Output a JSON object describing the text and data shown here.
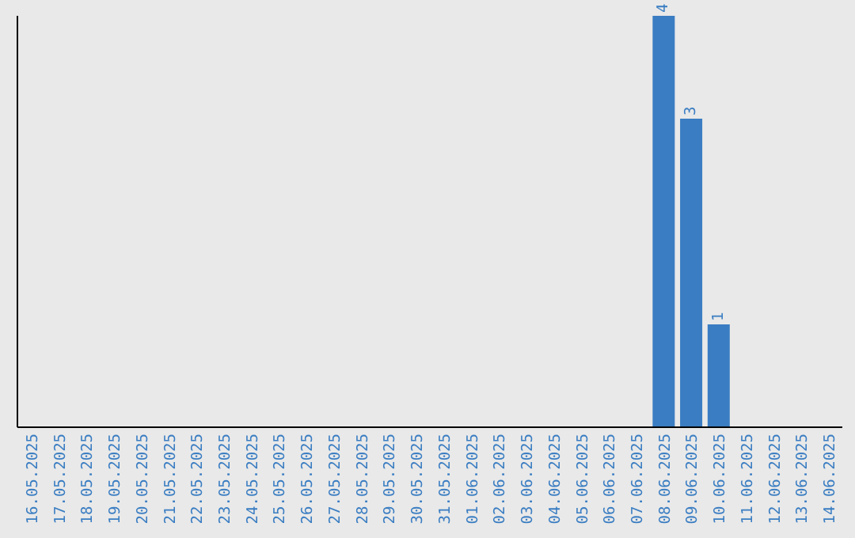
{
  "chart_data": {
    "type": "bar",
    "categories": [
      "16.05.2025",
      "17.05.2025",
      "18.05.2025",
      "19.05.2025",
      "20.05.2025",
      "21.05.2025",
      "22.05.2025",
      "23.05.2025",
      "24.05.2025",
      "25.05.2025",
      "26.05.2025",
      "27.05.2025",
      "28.05.2025",
      "29.05.2025",
      "30.05.2025",
      "31.05.2025",
      "01.06.2025",
      "02.06.2025",
      "03.06.2025",
      "04.06.2025",
      "05.06.2025",
      "06.06.2025",
      "07.06.2025",
      "08.06.2025",
      "09.06.2025",
      "10.06.2025",
      "11.06.2025",
      "12.06.2025",
      "13.06.2025",
      "14.06.2025"
    ],
    "values": [
      null,
      null,
      null,
      null,
      null,
      null,
      null,
      null,
      null,
      null,
      null,
      null,
      null,
      null,
      null,
      null,
      null,
      null,
      null,
      null,
      null,
      null,
      null,
      4,
      3,
      1,
      null,
      null,
      null,
      null
    ],
    "data_labels": true,
    "color": "#3a7dc2",
    "tick_labels": "x"
  }
}
